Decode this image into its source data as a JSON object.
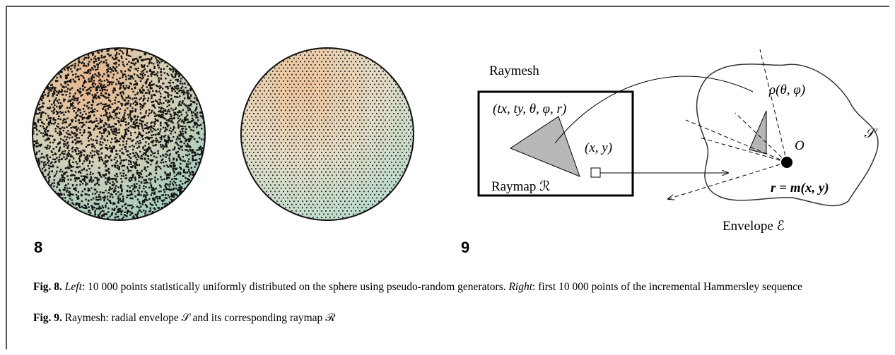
{
  "figure8": {
    "label": "8"
  },
  "figure9": {
    "label": "9",
    "raymesh": "Raymesh",
    "params": "(tx, ty, θ, φ, r)",
    "point": "(x, y)",
    "raymap": "Raymap ℛ",
    "rho": "ρ(θ, φ)",
    "origin": "O",
    "surface": "𝒮",
    "mapping": "r = m(x, y)",
    "envelope": "Envelope ℰ"
  },
  "captions": [
    {
      "label": "Fig. 8.",
      "segments": [
        "Left",
        ": 10 000 points statistically uniformly distributed on the sphere using pseudo-random generators. ",
        "Right",
        ": first 10 000 points of the incremental Hammersley sequence"
      ]
    },
    {
      "label": "Fig. 9.",
      "segments": [
        "Raymesh: radial envelope 𝒮 and its corresponding raymap ℛ"
      ]
    }
  ]
}
